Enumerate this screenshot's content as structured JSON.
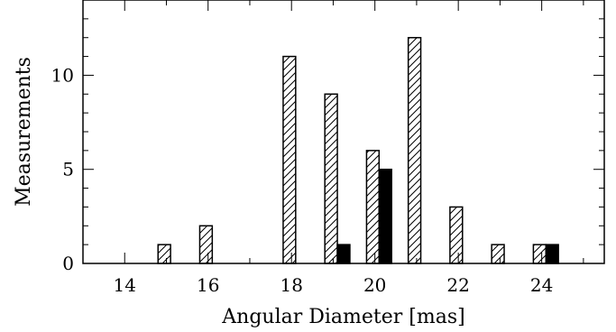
{
  "chart_data": {
    "type": "bar",
    "xlabel": "Angular Diameter [mas]",
    "ylabel": "Measurements",
    "xlim": [
      13,
      25.5
    ],
    "ylim": [
      0,
      14
    ],
    "x_ticks": [
      "14",
      "16",
      "18",
      "20",
      "22",
      "24"
    ],
    "y_ticks": [
      "0",
      "5",
      "10"
    ],
    "grid": false,
    "series": [
      {
        "fill": "hatched",
        "x": [
          14.8,
          15.8,
          17.8,
          18.8,
          19.8,
          20.8,
          21.8,
          22.8,
          23.8
        ],
        "values": [
          1,
          2,
          11,
          9,
          6,
          12,
          3,
          1,
          1
        ]
      },
      {
        "fill": "solid",
        "x": [
          19.1,
          20.1,
          24.1
        ],
        "values": [
          1,
          5,
          1
        ]
      }
    ]
  }
}
